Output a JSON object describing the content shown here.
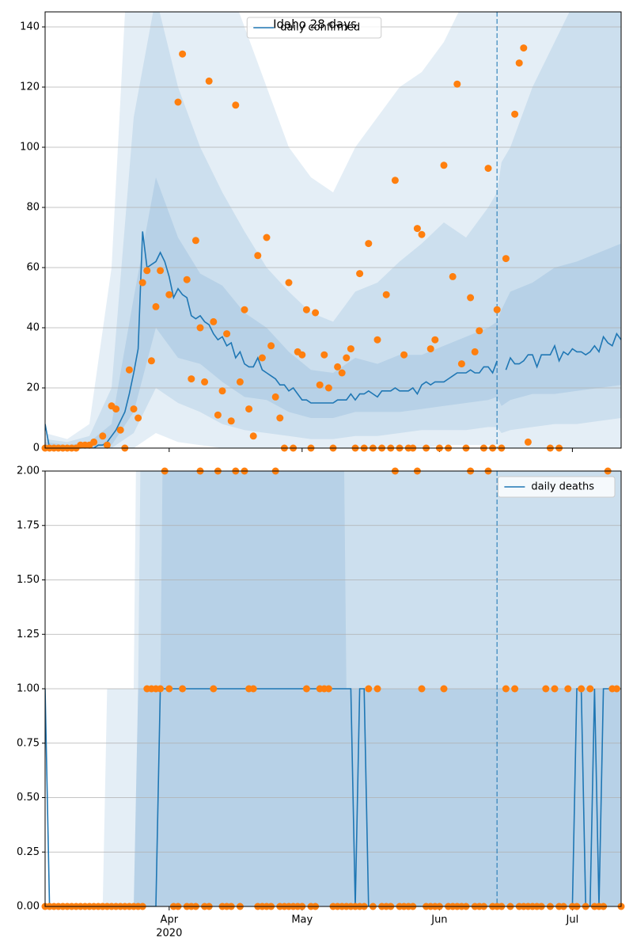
{
  "chart_data": [
    {
      "type": "line",
      "title": "Idaho 28 days",
      "legend": "upper center",
      "grid": true,
      "xlim": [
        0,
        130
      ],
      "ylim": [
        0,
        145
      ],
      "yticks": [
        0,
        20,
        40,
        60,
        80,
        100,
        120,
        140
      ],
      "xticks": [
        28,
        58,
        89,
        119
      ],
      "vline": 102,
      "band_color": "#1f77b4",
      "x": [
        0,
        1,
        2,
        3,
        4,
        5,
        6,
        7,
        8,
        9,
        10,
        11,
        12,
        13,
        14,
        15,
        16,
        17,
        18,
        19,
        20,
        21,
        22,
        23,
        24,
        25,
        26,
        27,
        28,
        29,
        30,
        31,
        32,
        33,
        34,
        35,
        36,
        37,
        38,
        39,
        40,
        41,
        42,
        43,
        44,
        45,
        46,
        47,
        48,
        49,
        50,
        51,
        52,
        53,
        54,
        55,
        56,
        57,
        58,
        59,
        60,
        61,
        62,
        63,
        64,
        65,
        66,
        67,
        68,
        69,
        70,
        71,
        72,
        73,
        74,
        75,
        76,
        77,
        78,
        79,
        80,
        81,
        82,
        83,
        84,
        85,
        86,
        87,
        88,
        89,
        90,
        91,
        92,
        93,
        94,
        95,
        96,
        97,
        98,
        99,
        100,
        101,
        102,
        103,
        104,
        105,
        106,
        107,
        108,
        109,
        110,
        111,
        112,
        113,
        114,
        115,
        116,
        117,
        118,
        119,
        120,
        121,
        122,
        123,
        124,
        125,
        126,
        127,
        128,
        129,
        130
      ],
      "series": [
        {
          "name": "daily confirmed",
          "kind": "line",
          "color": "#1f77b4",
          "values": [
            8,
            0,
            0,
            0,
            0,
            0,
            0,
            0,
            0,
            0,
            0,
            0,
            1,
            1,
            2,
            4,
            6,
            9,
            12,
            18,
            25,
            33,
            72,
            60,
            61,
            62,
            65,
            62,
            57,
            50,
            53,
            51,
            50,
            44,
            43,
            44,
            42,
            41,
            38,
            36,
            37,
            34,
            35,
            30,
            32,
            28,
            27,
            27,
            30,
            26,
            25,
            24,
            23,
            21,
            21,
            19,
            20,
            18,
            16,
            16,
            15,
            15,
            15,
            15,
            15,
            15,
            16,
            16,
            16,
            18,
            16,
            18,
            18,
            19,
            18,
            17,
            19,
            19,
            19,
            20,
            19,
            19,
            19,
            20,
            18,
            21,
            22,
            21,
            22,
            22,
            22,
            23,
            24,
            25,
            25,
            25,
            26,
            25,
            25,
            27,
            27,
            25,
            29,
            null,
            26,
            30,
            28,
            28,
            29,
            31,
            31,
            27,
            31,
            31,
            31,
            34,
            29,
            32,
            31,
            33,
            32,
            32,
            31,
            32,
            34,
            32,
            37,
            35,
            34,
            38,
            36
          ]
        },
        {
          "kind": "scatter",
          "color": "#ff7f0e",
          "values": [
            0,
            0,
            0,
            0,
            0,
            0,
            0,
            0,
            1,
            1,
            1,
            2,
            null,
            4,
            1,
            14,
            13,
            6,
            0,
            26,
            13,
            10,
            55,
            59,
            29,
            47,
            59,
            null,
            51,
            null,
            115,
            131,
            56,
            23,
            69,
            40,
            22,
            122,
            42,
            11,
            19,
            38,
            9,
            114,
            22,
            46,
            13,
            4,
            64,
            30,
            70,
            34,
            17,
            10,
            0,
            55,
            0,
            32,
            31,
            46,
            0,
            45,
            21,
            31,
            20,
            0,
            27,
            25,
            30,
            33,
            0,
            58,
            0,
            68,
            0,
            36,
            0,
            51,
            0,
            89,
            0,
            31,
            0,
            0,
            73,
            71,
            0,
            33,
            36,
            0,
            94,
            0,
            57,
            121,
            28,
            0,
            50,
            32,
            39,
            0,
            93,
            0,
            46,
            0,
            63,
            null,
            111,
            128,
            133,
            2,
            null,
            null,
            null,
            null,
            0,
            null,
            0,
            null,
            null,
            null,
            null,
            null,
            null,
            null,
            null,
            null,
            null,
            null,
            null,
            null,
            null
          ]
        }
      ],
      "band_x": [
        0,
        5,
        10,
        15,
        20,
        25,
        30,
        35,
        40,
        45,
        50,
        55,
        60,
        65,
        70,
        75,
        80,
        85,
        90,
        95,
        100,
        102,
        103,
        105,
        110,
        115,
        120,
        125,
        130
      ],
      "bands": [
        {
          "lower": [
            0,
            0,
            0,
            0,
            0,
            5,
            2,
            1,
            0,
            0,
            0,
            0,
            0,
            0,
            0,
            0,
            0,
            0,
            1,
            1,
            1,
            1,
            0,
            0,
            0,
            0,
            0,
            0,
            0
          ],
          "upper": [
            5,
            3,
            8,
            60,
            200,
            250,
            200,
            180,
            160,
            140,
            120,
            100,
            90,
            85,
            100,
            110,
            120,
            125,
            135,
            150,
            150,
            150,
            200,
            200,
            200,
            200,
            200,
            200,
            200
          ]
        },
        {
          "lower": [
            0,
            0,
            0,
            0,
            5,
            20,
            15,
            12,
            8,
            6,
            5,
            4,
            3,
            3,
            4,
            4,
            5,
            6,
            6,
            6,
            7,
            7,
            5,
            6,
            7,
            8,
            8,
            9,
            10
          ],
          "upper": [
            3,
            2,
            4,
            20,
            110,
            150,
            120,
            100,
            85,
            72,
            60,
            52,
            45,
            42,
            52,
            55,
            62,
            68,
            75,
            70,
            80,
            85,
            95,
            100,
            120,
            135,
            150,
            150,
            150
          ]
        },
        {
          "lower": [
            0,
            0,
            0,
            1,
            12,
            40,
            30,
            28,
            22,
            17,
            16,
            12,
            10,
            10,
            12,
            12,
            12,
            13,
            14,
            15,
            16,
            17,
            14,
            16,
            18,
            18,
            19,
            20,
            21
          ],
          "upper": [
            2,
            1,
            2,
            8,
            50,
            90,
            70,
            58,
            54,
            45,
            40,
            32,
            26,
            25,
            30,
            28,
            31,
            31,
            34,
            37,
            40,
            42,
            46,
            52,
            55,
            60,
            62,
            65,
            68
          ]
        }
      ]
    },
    {
      "type": "line",
      "legend": "upper right",
      "grid": true,
      "xlim": [
        0,
        130
      ],
      "ylim": [
        0,
        2
      ],
      "yticks": [
        {
          "value": 0,
          "label": "0.00"
        },
        {
          "value": 0.25,
          "label": "0.25"
        },
        {
          "value": 0.5,
          "label": "0.50"
        },
        {
          "value": 0.75,
          "label": "0.75"
        },
        {
          "value": 1,
          "label": "1.00"
        },
        {
          "value": 1.25,
          "label": "1.25"
        },
        {
          "value": 1.5,
          "label": "1.50"
        },
        {
          "value": 1.75,
          "label": "1.75"
        },
        {
          "value": 2,
          "label": "2.00"
        }
      ],
      "xticks": [
        {
          "value": 28,
          "label": "Apr"
        },
        {
          "value": 58,
          "label": "May"
        },
        {
          "value": 89,
          "label": "Jun"
        },
        {
          "value": 119,
          "label": "Jul"
        }
      ],
      "x_year": "2020",
      "vline": 102,
      "band_color": "#1f77b4",
      "x": [
        0,
        1,
        2,
        3,
        4,
        5,
        6,
        7,
        8,
        9,
        10,
        11,
        12,
        13,
        14,
        15,
        16,
        17,
        18,
        19,
        20,
        21,
        22,
        23,
        24,
        25,
        26,
        27,
        28,
        29,
        30,
        31,
        32,
        33,
        34,
        35,
        36,
        37,
        38,
        39,
        40,
        41,
        42,
        43,
        44,
        45,
        46,
        47,
        48,
        49,
        50,
        51,
        52,
        53,
        54,
        55,
        56,
        57,
        58,
        59,
        60,
        61,
        62,
        63,
        64,
        65,
        66,
        67,
        68,
        69,
        70,
        71,
        72,
        73,
        74,
        75,
        76,
        77,
        78,
        79,
        80,
        81,
        82,
        83,
        84,
        85,
        86,
        87,
        88,
        89,
        90,
        91,
        92,
        93,
        94,
        95,
        96,
        97,
        98,
        99,
        100,
        101,
        102,
        103,
        104,
        105,
        106,
        107,
        108,
        109,
        110,
        111,
        112,
        113,
        114,
        115,
        116,
        117,
        118,
        119,
        120,
        121,
        122,
        123,
        124,
        125,
        126,
        127,
        128,
        129,
        130
      ],
      "series": [
        {
          "name": "daily deaths",
          "kind": "line",
          "color": "#1f77b4",
          "values": [
            1,
            0,
            0,
            0,
            0,
            0,
            0,
            0,
            0,
            0,
            0,
            0,
            0,
            0,
            0,
            0,
            0,
            0,
            0,
            0,
            0,
            0,
            0,
            0,
            0,
            0,
            1,
            1,
            1,
            1,
            1,
            1,
            1,
            1,
            1,
            1,
            1,
            1,
            1,
            1,
            1,
            1,
            1,
            1,
            1,
            1,
            1,
            1,
            1,
            1,
            1,
            1,
            1,
            1,
            1,
            1,
            1,
            1,
            1,
            1,
            1,
            1,
            1,
            1,
            1,
            1,
            1,
            1,
            1,
            1,
            0,
            1,
            1,
            0,
            0,
            0,
            0,
            0,
            0,
            0,
            0,
            0,
            0,
            0,
            0,
            0,
            0,
            0,
            0,
            0,
            0,
            0,
            0,
            0,
            0,
            0,
            0,
            0,
            0,
            0,
            0,
            0,
            0,
            null,
            0,
            0,
            0,
            0,
            0,
            0,
            0,
            0,
            0,
            0,
            0,
            0,
            0,
            0,
            0,
            0,
            1,
            1,
            0,
            0,
            1,
            0,
            1,
            1,
            1,
            1,
            1
          ]
        },
        {
          "kind": "scatter",
          "color": "#ff7f0e",
          "values": [
            0,
            0,
            0,
            0,
            0,
            0,
            0,
            0,
            0,
            0,
            0,
            0,
            0,
            0,
            0,
            0,
            0,
            0,
            0,
            0,
            0,
            0,
            0,
            1,
            1,
            1,
            1,
            2,
            1,
            0,
            0,
            1,
            0,
            0,
            0,
            2,
            0,
            0,
            1,
            2,
            0,
            0,
            0,
            2,
            0,
            2,
            1,
            1,
            0,
            0,
            0,
            0,
            2,
            0,
            0,
            0,
            0,
            0,
            0,
            1,
            0,
            0,
            1,
            1,
            1,
            0,
            0,
            0,
            0,
            0,
            0,
            0,
            0,
            1,
            0,
            1,
            0,
            0,
            0,
            2,
            0,
            0,
            0,
            0,
            2,
            1,
            0,
            0,
            0,
            0,
            1,
            0,
            0,
            0,
            0,
            0,
            2,
            0,
            0,
            0,
            2,
            0,
            0,
            0,
            1,
            0,
            1,
            0,
            0,
            0,
            0,
            0,
            0,
            1,
            0,
            1,
            0,
            0,
            1,
            0,
            0,
            1,
            0,
            1,
            0,
            0,
            0,
            2,
            1,
            1,
            0
          ]
        }
      ],
      "band_x": [
        0,
        1,
        13,
        14,
        20,
        21,
        22,
        26,
        27,
        67,
        68,
        102,
        103,
        130
      ],
      "bands": [
        {
          "lower": [
            0,
            0,
            0,
            0,
            0,
            0,
            0,
            0,
            0,
            0,
            0,
            0,
            0,
            0
          ],
          "upper": [
            0,
            0,
            0,
            1,
            1,
            3,
            3,
            3,
            3,
            3,
            3,
            3,
            3,
            3
          ]
        },
        {
          "lower": [
            0,
            0,
            0,
            0,
            0,
            0,
            0,
            0,
            0,
            0,
            0,
            0,
            0,
            0
          ],
          "upper": [
            0,
            0,
            0,
            0,
            0,
            1,
            3,
            3,
            3,
            3,
            3,
            3,
            3,
            3
          ]
        },
        {
          "lower": [
            0,
            0,
            0,
            0,
            0,
            0,
            0,
            0,
            0,
            0,
            0,
            0,
            0,
            0
          ],
          "upper": [
            0,
            0,
            0,
            0,
            0,
            1,
            1,
            1,
            3,
            3,
            1,
            1,
            1,
            1
          ]
        }
      ]
    }
  ]
}
